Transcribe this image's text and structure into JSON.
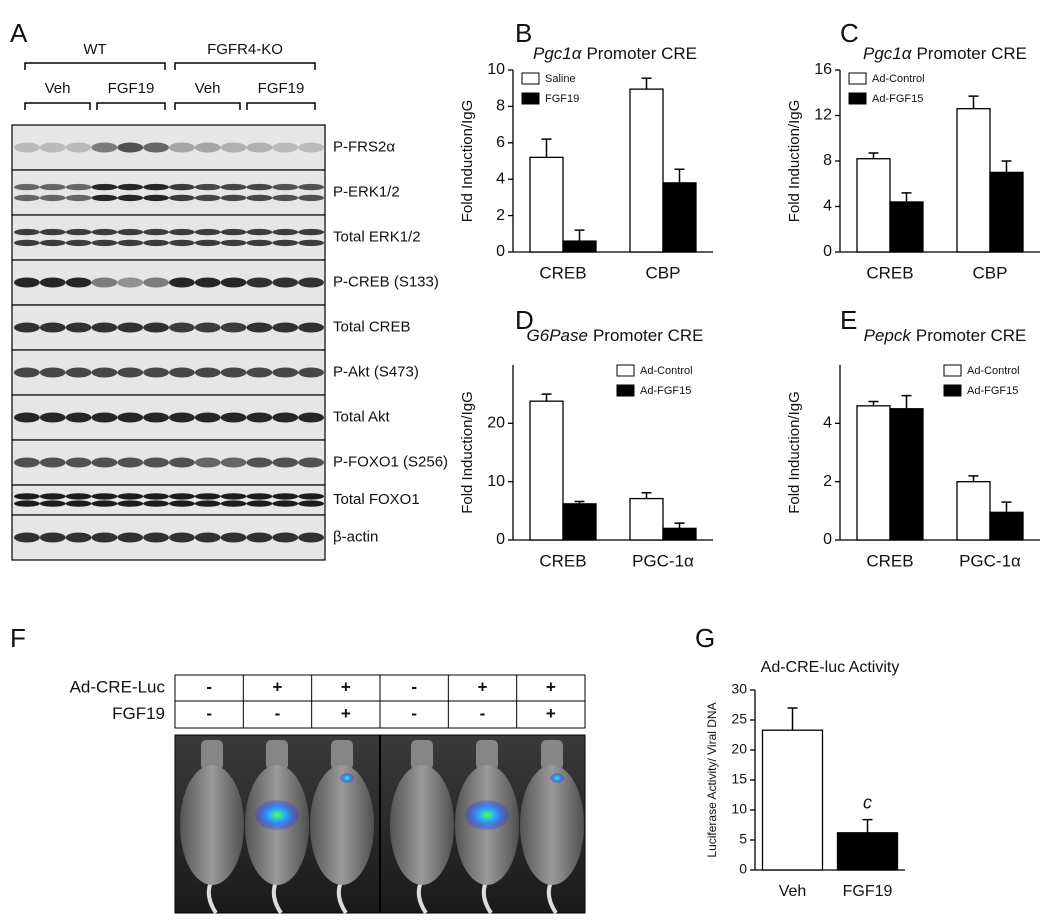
{
  "panel_labels": [
    "A",
    "B",
    "C",
    "D",
    "E",
    "F",
    "G"
  ],
  "blot": {
    "groups": [
      "WT",
      "FGFR4-KO"
    ],
    "treatments": [
      "Veh",
      "FGF19",
      "Veh",
      "FGF19"
    ],
    "rows": [
      "P-FRS2α",
      "P-ERK1/2",
      "Total ERK1/2",
      "P-CREB (S133)",
      "Total CREB",
      "P-Akt (S473)",
      "Total Akt",
      "P-FOXO1 (S256)",
      "Total FOXO1",
      "β-actin"
    ]
  },
  "imaging": {
    "rows": [
      {
        "label": "Ad-CRE-Luc",
        "cells": [
          "-",
          "+",
          "+",
          "-",
          "+",
          "+"
        ]
      },
      {
        "label": "FGF19",
        "cells": [
          "-",
          "-",
          "+",
          "-",
          "-",
          "+"
        ]
      }
    ]
  },
  "chart_data": [
    {
      "type": "bar",
      "title": [
        "Pgc1α",
        "Promoter CRE"
      ],
      "ylabel": "Fold Induction/IgG",
      "categories": [
        "CREB",
        "CBP"
      ],
      "series": [
        {
          "name": "Saline",
          "color": "#ffffff",
          "values": [
            5.2,
            8.95
          ],
          "errors": [
            1.0,
            0.6
          ]
        },
        {
          "name": "FGF19",
          "color": "#000000",
          "values": [
            0.6,
            3.8
          ],
          "errors": [
            0.6,
            0.75
          ]
        }
      ],
      "ylim": [
        0,
        10
      ],
      "yticks": [
        0,
        2,
        4,
        6,
        8,
        10
      ],
      "legend": "upper left"
    },
    {
      "type": "bar",
      "title": [
        "Pgc1α",
        "Promoter CRE"
      ],
      "ylabel": "Fold Induction/IgG",
      "categories": [
        "CREB",
        "CBP"
      ],
      "series": [
        {
          "name": "Ad-Control",
          "color": "#ffffff",
          "values": [
            8.2,
            12.6
          ],
          "errors": [
            0.5,
            1.1
          ]
        },
        {
          "name": "Ad-FGF15",
          "color": "#000000",
          "values": [
            4.4,
            7.0
          ],
          "errors": [
            0.8,
            1.0
          ]
        }
      ],
      "ylim": [
        0,
        16
      ],
      "yticks": [
        0,
        4,
        8,
        12,
        16
      ],
      "legend": "upper left"
    },
    {
      "type": "bar",
      "title": [
        "G6Pase",
        "Promoter CRE"
      ],
      "ylabel": "Fold Induction/IgG",
      "categories": [
        "CREB",
        "PGC-1α"
      ],
      "series": [
        {
          "name": "Ad-Control",
          "color": "#ffffff",
          "values": [
            23.8,
            7.1
          ],
          "errors": [
            1.2,
            1.0
          ]
        },
        {
          "name": "Ad-FGF15",
          "color": "#000000",
          "values": [
            6.2,
            2.0
          ],
          "errors": [
            0.4,
            0.9
          ]
        }
      ],
      "ylim": [
        0,
        30
      ],
      "yticks": [
        0,
        10,
        20
      ],
      "legend": "upper right"
    },
    {
      "type": "bar",
      "title": [
        "Pepck",
        "Promoter CRE"
      ],
      "ylabel": "Fold Induction/IgG",
      "categories": [
        "CREB",
        "PGC-1α"
      ],
      "series": [
        {
          "name": "Ad-Control",
          "color": "#ffffff",
          "values": [
            4.6,
            2.0
          ],
          "errors": [
            0.15,
            0.2
          ]
        },
        {
          "name": "Ad-FGF15",
          "color": "#000000",
          "values": [
            4.5,
            0.95
          ],
          "errors": [
            0.45,
            0.35
          ]
        }
      ],
      "ylim": [
        0,
        6
      ],
      "yticks": [
        0,
        2,
        4
      ],
      "legend": "upper right"
    },
    {
      "type": "bar",
      "title": "Ad-CRE-luc Activity",
      "ylabel": "Luciferase Activity/ Viral DNA",
      "categories": [
        "Veh",
        "FGF19"
      ],
      "series": [
        {
          "colors": [
            "#ffffff",
            "#000000"
          ],
          "values": [
            23.3,
            6.2
          ],
          "errors": [
            3.7,
            2.2
          ]
        }
      ],
      "annotations": [
        {
          "text": "c",
          "category": 1
        }
      ],
      "ylim": [
        0,
        30
      ],
      "yticks": [
        0,
        5,
        10,
        15,
        20,
        25,
        30
      ]
    }
  ]
}
